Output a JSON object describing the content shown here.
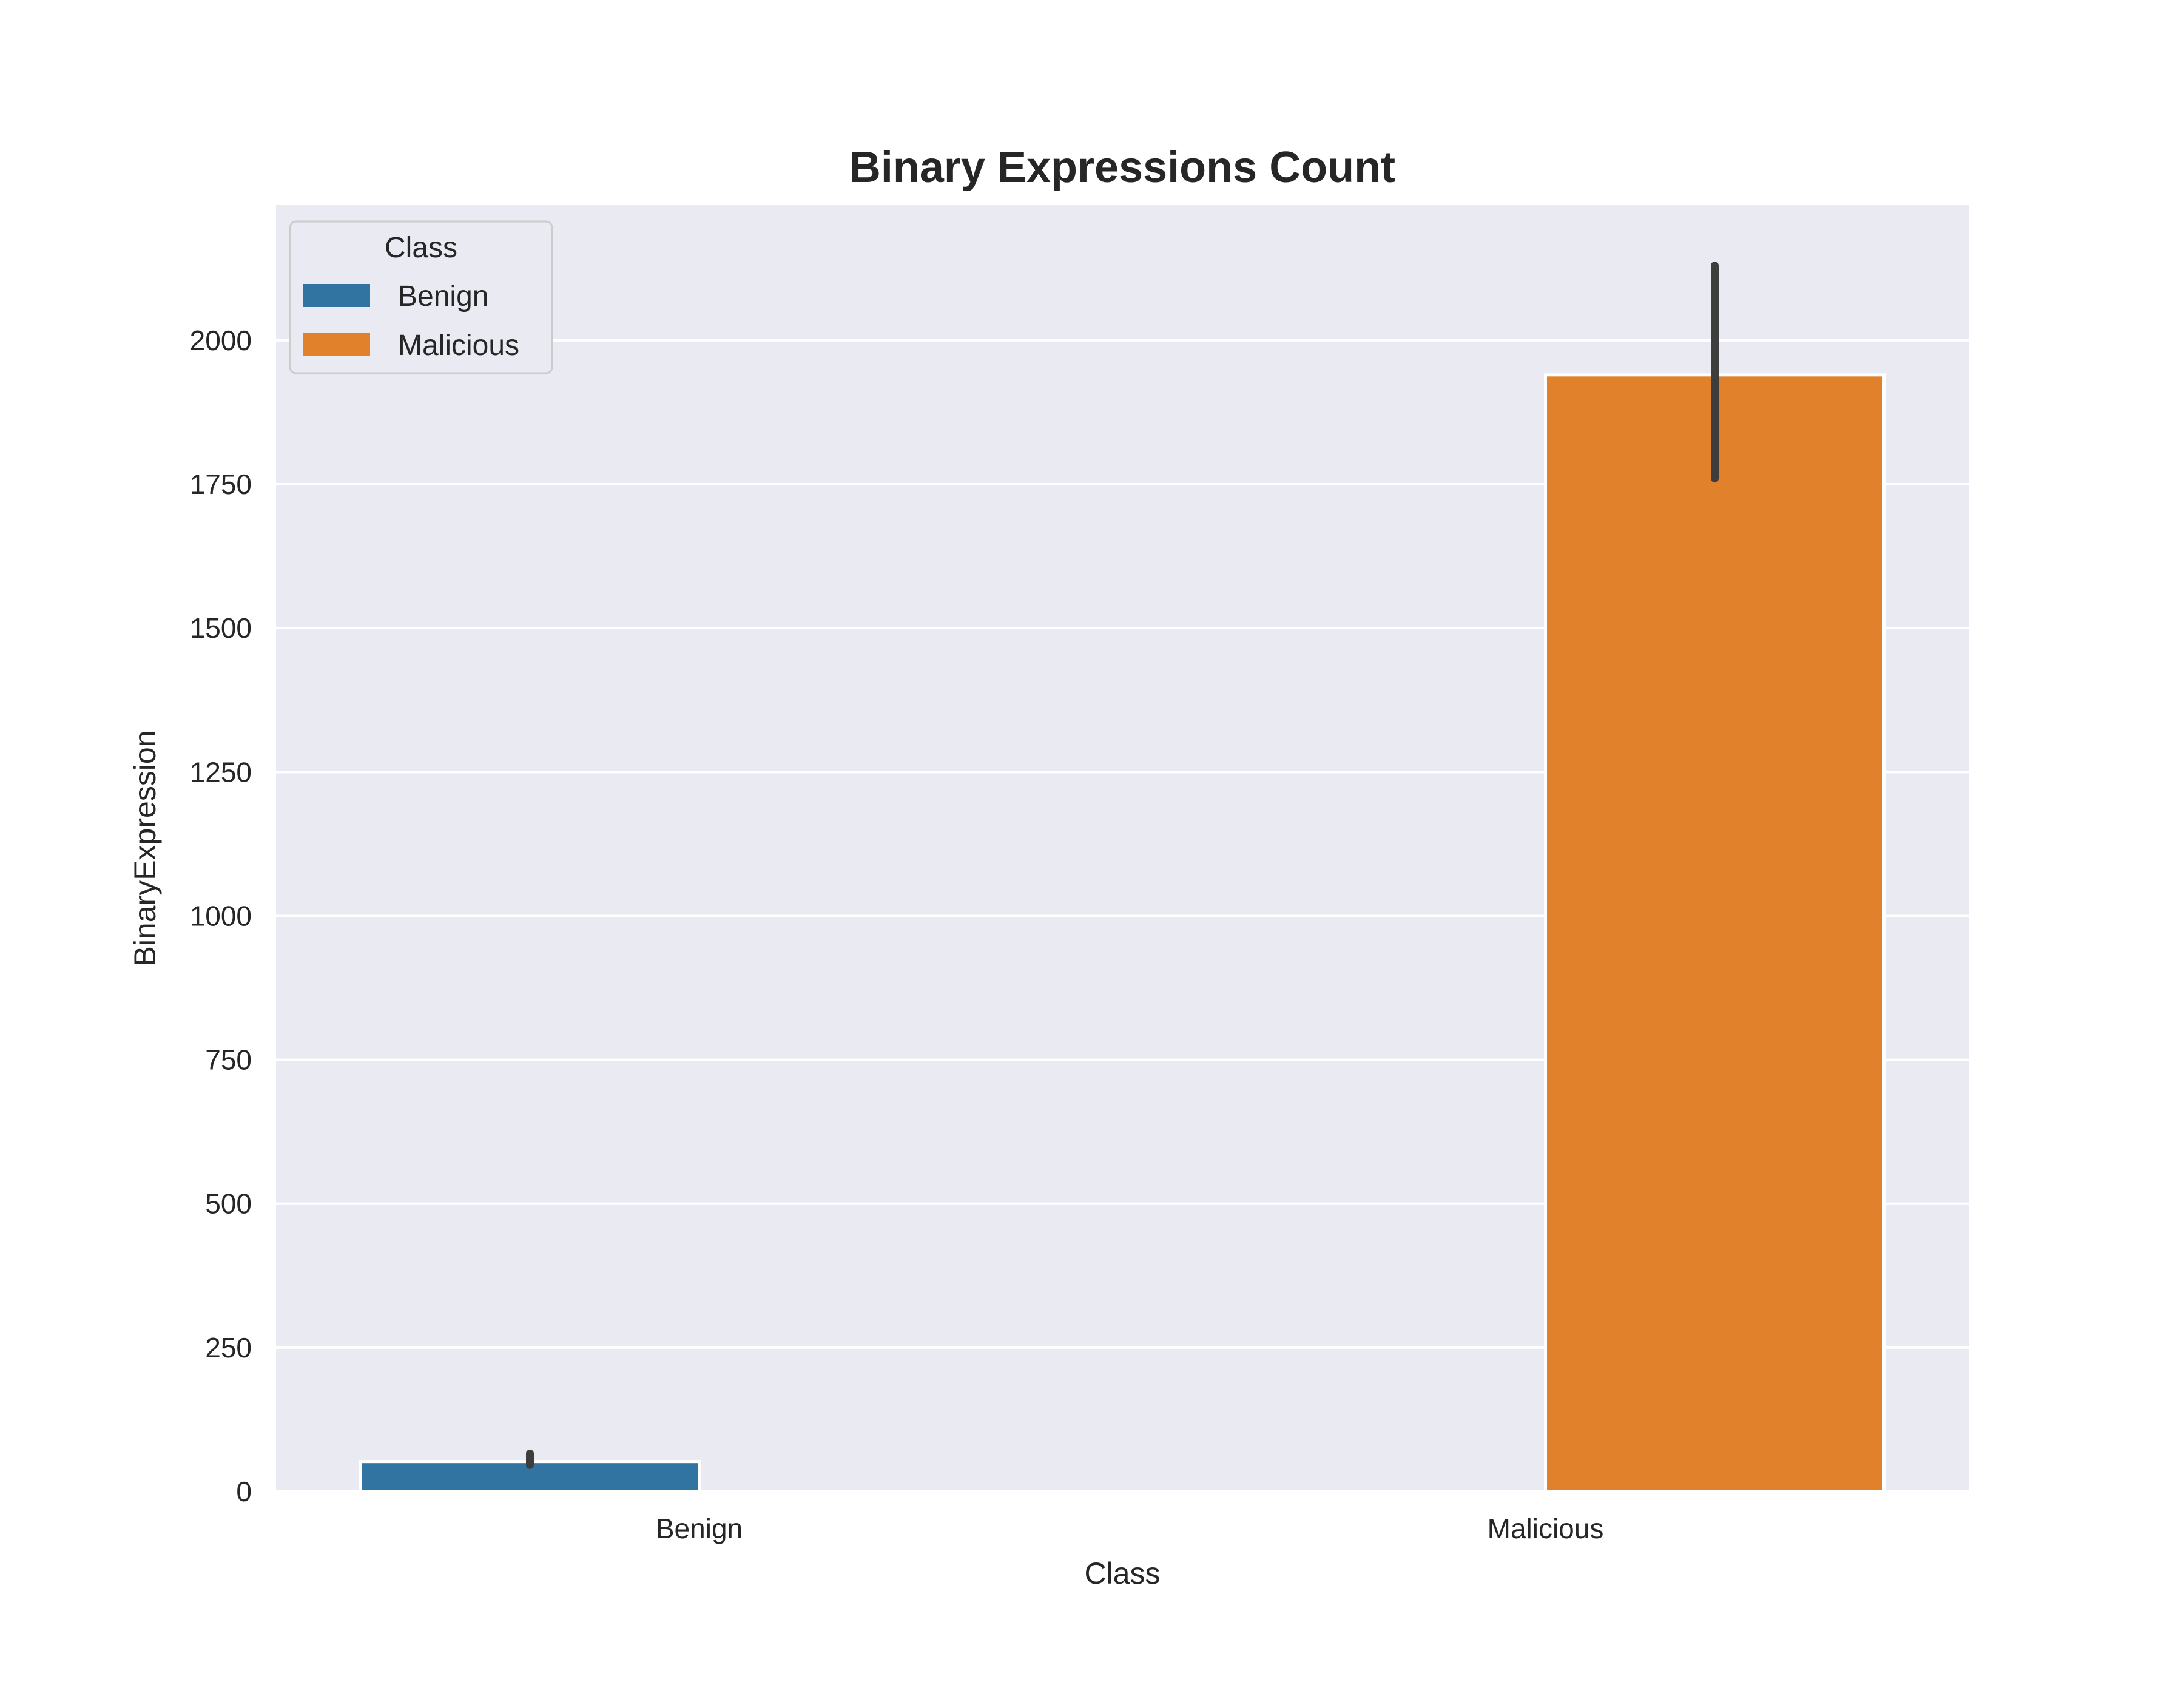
{
  "chart_data": {
    "type": "bar",
    "title": "Binary Expressions Count",
    "xlabel": "Class",
    "ylabel": "BinaryExpression",
    "categories": [
      "Benign",
      "Malicious"
    ],
    "series": [
      {
        "name": "Benign",
        "values": [
          52,
          null
        ],
        "error_low": [
          46,
          null
        ],
        "error_high": [
          66,
          null
        ]
      },
      {
        "name": "Malicious",
        "values": [
          null,
          1940
        ],
        "error_low": [
          null,
          1760
        ],
        "error_high": [
          null,
          2130
        ]
      }
    ],
    "yticks": [
      0,
      250,
      500,
      750,
      1000,
      1250,
      1500,
      1750,
      2000
    ],
    "ylim": [
      0,
      2235
    ],
    "grid": true,
    "legend": {
      "title": "Class",
      "entries": [
        "Benign",
        "Malicious"
      ],
      "placement": "upper-left"
    },
    "colors": {
      "Benign": "#3274a1",
      "Malicious": "#e1812c",
      "background": "#eaeaf2",
      "grid": "#ffffff",
      "errorbar": "#3d3d3d"
    }
  }
}
